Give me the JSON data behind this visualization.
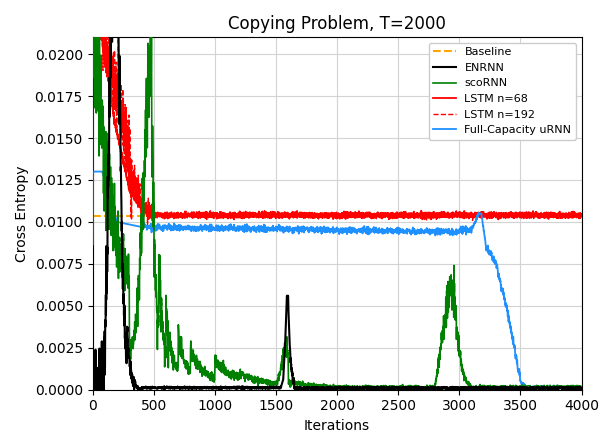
{
  "title": "Copying Problem, T=2000",
  "xlabel": "Iterations",
  "ylabel": "Cross Entropy",
  "xlim": [
    0,
    4000
  ],
  "ylim": [
    0,
    0.021
  ],
  "baseline_value": 0.01033,
  "legend_entries": [
    "Baseline",
    "ENRNN",
    "scoRNN",
    "LSTM n=68",
    "LSTM n=192",
    "Full-Capacity uRNN"
  ],
  "colors": {
    "baseline": "#FFA500",
    "enrnn": "#000000",
    "scorn": "#008000",
    "lstm68": "#FF0000",
    "lstm192": "#FF0000",
    "urnn": "#1E90FF"
  }
}
